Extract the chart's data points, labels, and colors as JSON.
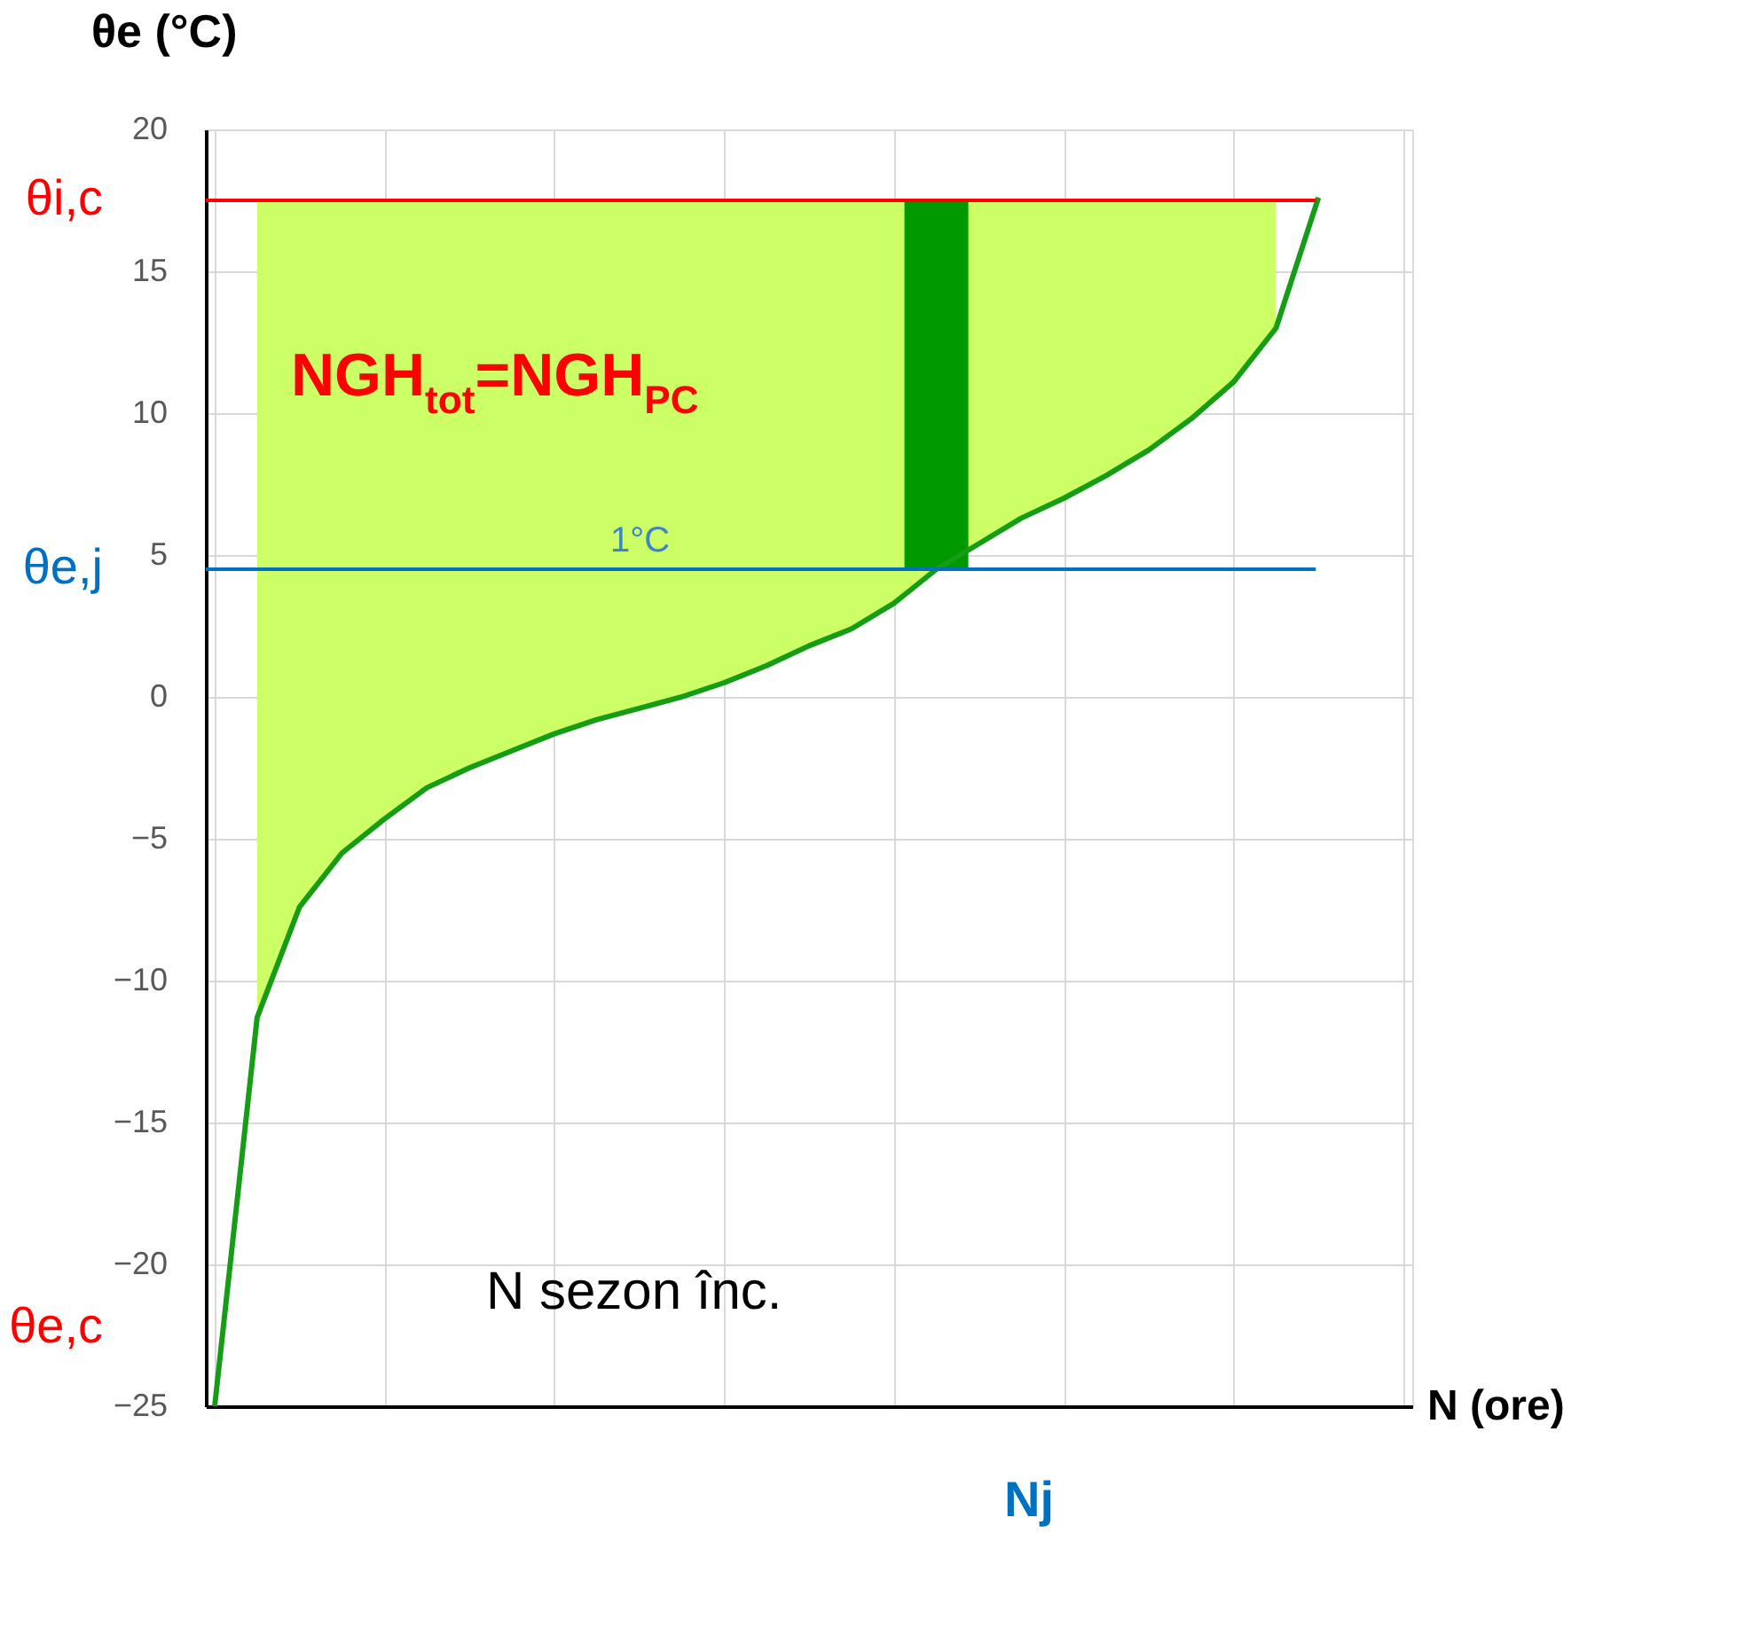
{
  "chart_data": {
    "type": "line",
    "xlabel": "N (ore)",
    "ylabel": "θe (°C)",
    "categories": [
      null,
      null,
      null,
      null,
      null,
      null,
      null,
      null,
      null,
      null,
      null,
      null,
      null,
      null,
      null,
      null,
      null,
      null,
      null,
      null,
      null,
      null,
      null,
      null,
      null,
      null,
      null,
      null,
      null
    ],
    "series": [
      {
        "type": "bar",
        "color": "#009900",
        "values": [
          null,
          null,
          null,
          null,
          null,
          null,
          null,
          null,
          null,
          null,
          null,
          null,
          null,
          null,
          null,
          null,
          null,
          13.0,
          null,
          null,
          null,
          null,
          null,
          null,
          null,
          null,
          null,
          null,
          null
        ],
        "base": [
          null,
          null,
          null,
          null,
          null,
          null,
          null,
          null,
          null,
          null,
          null,
          null,
          null,
          null,
          null,
          null,
          null,
          4.5,
          null,
          null,
          null,
          null,
          null,
          null,
          null,
          null,
          null,
          null,
          null
        ]
      },
      {
        "color": "#169c16",
        "values": [
          -25,
          -11.3,
          -7.4,
          -5.5,
          -4.3,
          -3.2,
          -2.5,
          -1.9,
          -1.3,
          -0.8,
          -0.4,
          0.0,
          0.5,
          1.1,
          1.8,
          2.4,
          3.3,
          4.5,
          5.4,
          6.3,
          7.0,
          7.8,
          8.7,
          9.8,
          11.1,
          13.0,
          17.6,
          null,
          null
        ],
        "lower": [
          null,
          -11.3,
          -7.4,
          -5.5,
          -4.3,
          -3.2,
          -2.5,
          -1.9,
          -1.3,
          -0.8,
          -0.4,
          0.0,
          0.5,
          1.1,
          1.8,
          2.4,
          3.3,
          4.5,
          5.4,
          6.3,
          7.0,
          7.8,
          8.7,
          9.8,
          11.1,
          13.0,
          null,
          null,
          null
        ],
        "upper": [
          null,
          17.5,
          17.5,
          17.5,
          17.5,
          17.5,
          17.5,
          17.5,
          17.5,
          17.5,
          17.5,
          17.5,
          17.5,
          17.5,
          17.5,
          17.5,
          17.5,
          17.5,
          17.5,
          17.5,
          17.5,
          17.5,
          17.5,
          17.5,
          17.5,
          17.5,
          null,
          null,
          null
        ]
      }
    ],
    "ylim": [
      -25,
      20
    ],
    "yticks": [
      -25,
      -20,
      -15,
      -10,
      -5,
      0,
      5,
      10,
      15,
      20
    ],
    "grid": true,
    "tick_labels": "y",
    "marker": "none",
    "ref_lines": [
      {
        "axis": "y",
        "value": 17.5,
        "label": "θi,c",
        "color": "#ff0000"
      },
      {
        "axis": "y",
        "value": 4.5,
        "label": "θe,j",
        "color": "#0070c0"
      }
    ],
    "annotations": [
      "NGH$_{tot}$=NGH$_{PC}$",
      "1°C",
      "N sezon înc.",
      "Nj",
      "θe,c"
    ]
  }
}
